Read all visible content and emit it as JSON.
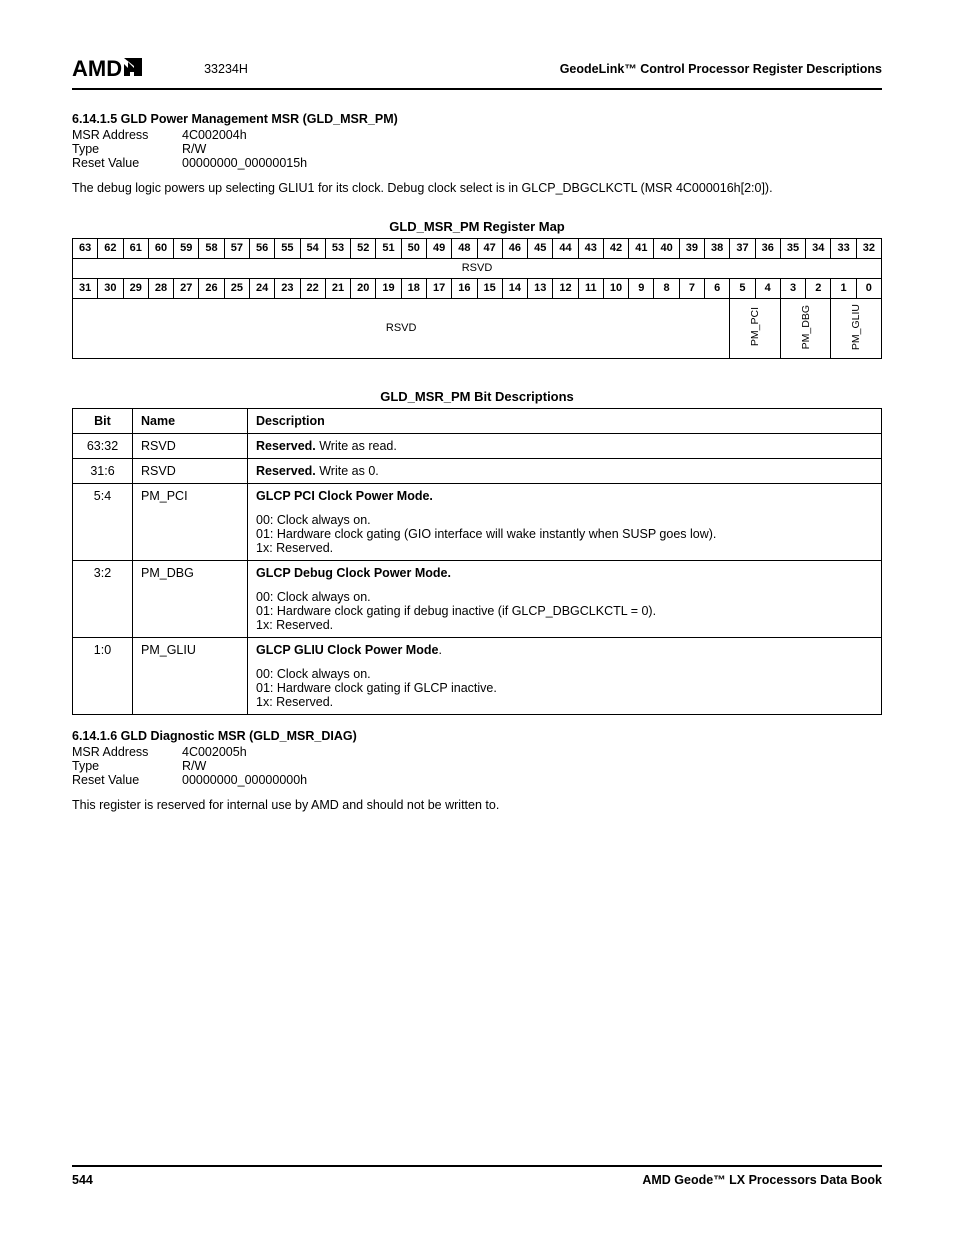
{
  "header": {
    "logo_text": "AMD",
    "doc_number": "33234H",
    "right_title": "GeodeLink™ Control Processor Register Descriptions"
  },
  "section1": {
    "heading": "6.14.1.5   GLD Power Management MSR (GLD_MSR_PM)",
    "msr_addr_label": "MSR Address",
    "msr_addr_value": "4C002004h",
    "type_label": "Type",
    "type_value": "R/W",
    "reset_label": "Reset Value",
    "reset_value": "00000000_00000015h",
    "paragraph": "The debug logic powers up selecting GLIU1 for its clock. Debug clock select is in GLCP_DBGCLKCTL (MSR 4C000016h[2:0])."
  },
  "regmap": {
    "title": "GLD_MSR_PM Register Map",
    "bits_high": [
      "63",
      "62",
      "61",
      "60",
      "59",
      "58",
      "57",
      "56",
      "55",
      "54",
      "53",
      "52",
      "51",
      "50",
      "49",
      "48",
      "47",
      "46",
      "45",
      "44",
      "43",
      "42",
      "41",
      "40",
      "39",
      "38",
      "37",
      "36",
      "35",
      "34",
      "33",
      "32"
    ],
    "rsvd_high": "RSVD",
    "bits_low": [
      "31",
      "30",
      "29",
      "28",
      "27",
      "26",
      "25",
      "24",
      "23",
      "22",
      "21",
      "20",
      "19",
      "18",
      "17",
      "16",
      "15",
      "14",
      "13",
      "12",
      "11",
      "10",
      "9",
      "8",
      "7",
      "6",
      "5",
      "4",
      "3",
      "2",
      "1",
      "0"
    ],
    "rsvd_low": "RSVD",
    "field_pm_pci": "PM_PCI",
    "field_pm_dbg": "PM_DBG",
    "field_pm_gliu": "PM_GLIU"
  },
  "bitdesc": {
    "title": "GLD_MSR_PM Bit Descriptions",
    "col_bit": "Bit",
    "col_name": "Name",
    "col_desc": "Description",
    "rows": [
      {
        "bit": "63:32",
        "name": "RSVD",
        "desc_title": "Reserved.",
        "desc_rest": " Write as read."
      },
      {
        "bit": "31:6",
        "name": "RSVD",
        "desc_title": "Reserved.",
        "desc_rest": " Write as 0."
      }
    ],
    "pm_pci": {
      "bit": "5:4",
      "name": "PM_PCI",
      "title": "GLCP PCI Clock Power Mode.",
      "l1": "00: Clock always on.",
      "l2": "01: Hardware clock gating (GIO interface will wake instantly when SUSP goes low).",
      "l3": "1x: Reserved."
    },
    "pm_dbg": {
      "bit": "3:2",
      "name": "PM_DBG",
      "title": "GLCP Debug Clock Power Mode.",
      "l1": "00: Clock always on.",
      "l2": "01: Hardware clock gating if debug inactive (if GLCP_DBGCLKCTL = 0).",
      "l3": "1x: Reserved."
    },
    "pm_gliu": {
      "bit": "1:0",
      "name": "PM_GLIU",
      "title_a": "GLCP GLIU Clock Power Mode",
      "title_b": ".",
      "l1": "00: Clock always on.",
      "l2": "01: Hardware clock gating if GLCP inactive.",
      "l3": "1x: Reserved."
    }
  },
  "section2": {
    "heading": "6.14.1.6   GLD Diagnostic MSR (GLD_MSR_DIAG)",
    "msr_addr_label": "MSR Address",
    "msr_addr_value": "4C002005h",
    "type_label": "Type",
    "type_value": "R/W",
    "reset_label": "Reset Value",
    "reset_value": "00000000_00000000h",
    "paragraph": "This register is reserved for internal use by AMD and should not be written to."
  },
  "footer": {
    "page": "544",
    "book": "AMD Geode™ LX Processors Data Book"
  }
}
